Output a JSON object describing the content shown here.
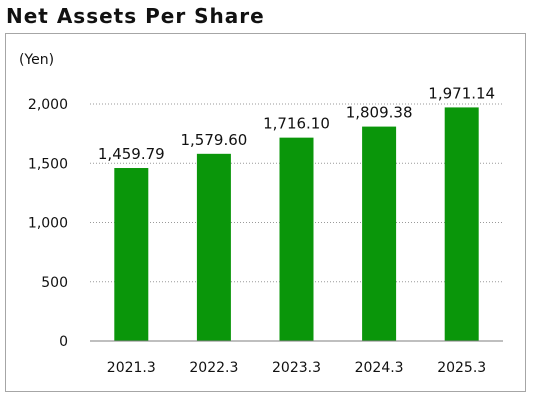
{
  "title": "Net Assets Per Share",
  "chart_data": {
    "type": "bar",
    "title": "Net Assets Per Share",
    "unit_label": "(Yen)",
    "categories": [
      "2021.3",
      "2022.3",
      "2023.3",
      "2024.3",
      "2025.3"
    ],
    "values": [
      1459.79,
      1579.6,
      1716.1,
      1809.38,
      1971.14
    ],
    "data_labels": [
      "1,459.79",
      "1,579.60",
      "1,716.10",
      "1,809.38",
      "1,971.14"
    ],
    "y_ticks": [
      0,
      500,
      1000,
      1500,
      2000
    ],
    "y_tick_labels": [
      "0",
      "500",
      "1,000",
      "1,500",
      "2,000"
    ],
    "ylim": [
      0,
      2000
    ],
    "grid": "horizontal dotted",
    "bar_color": "#0a960a"
  }
}
